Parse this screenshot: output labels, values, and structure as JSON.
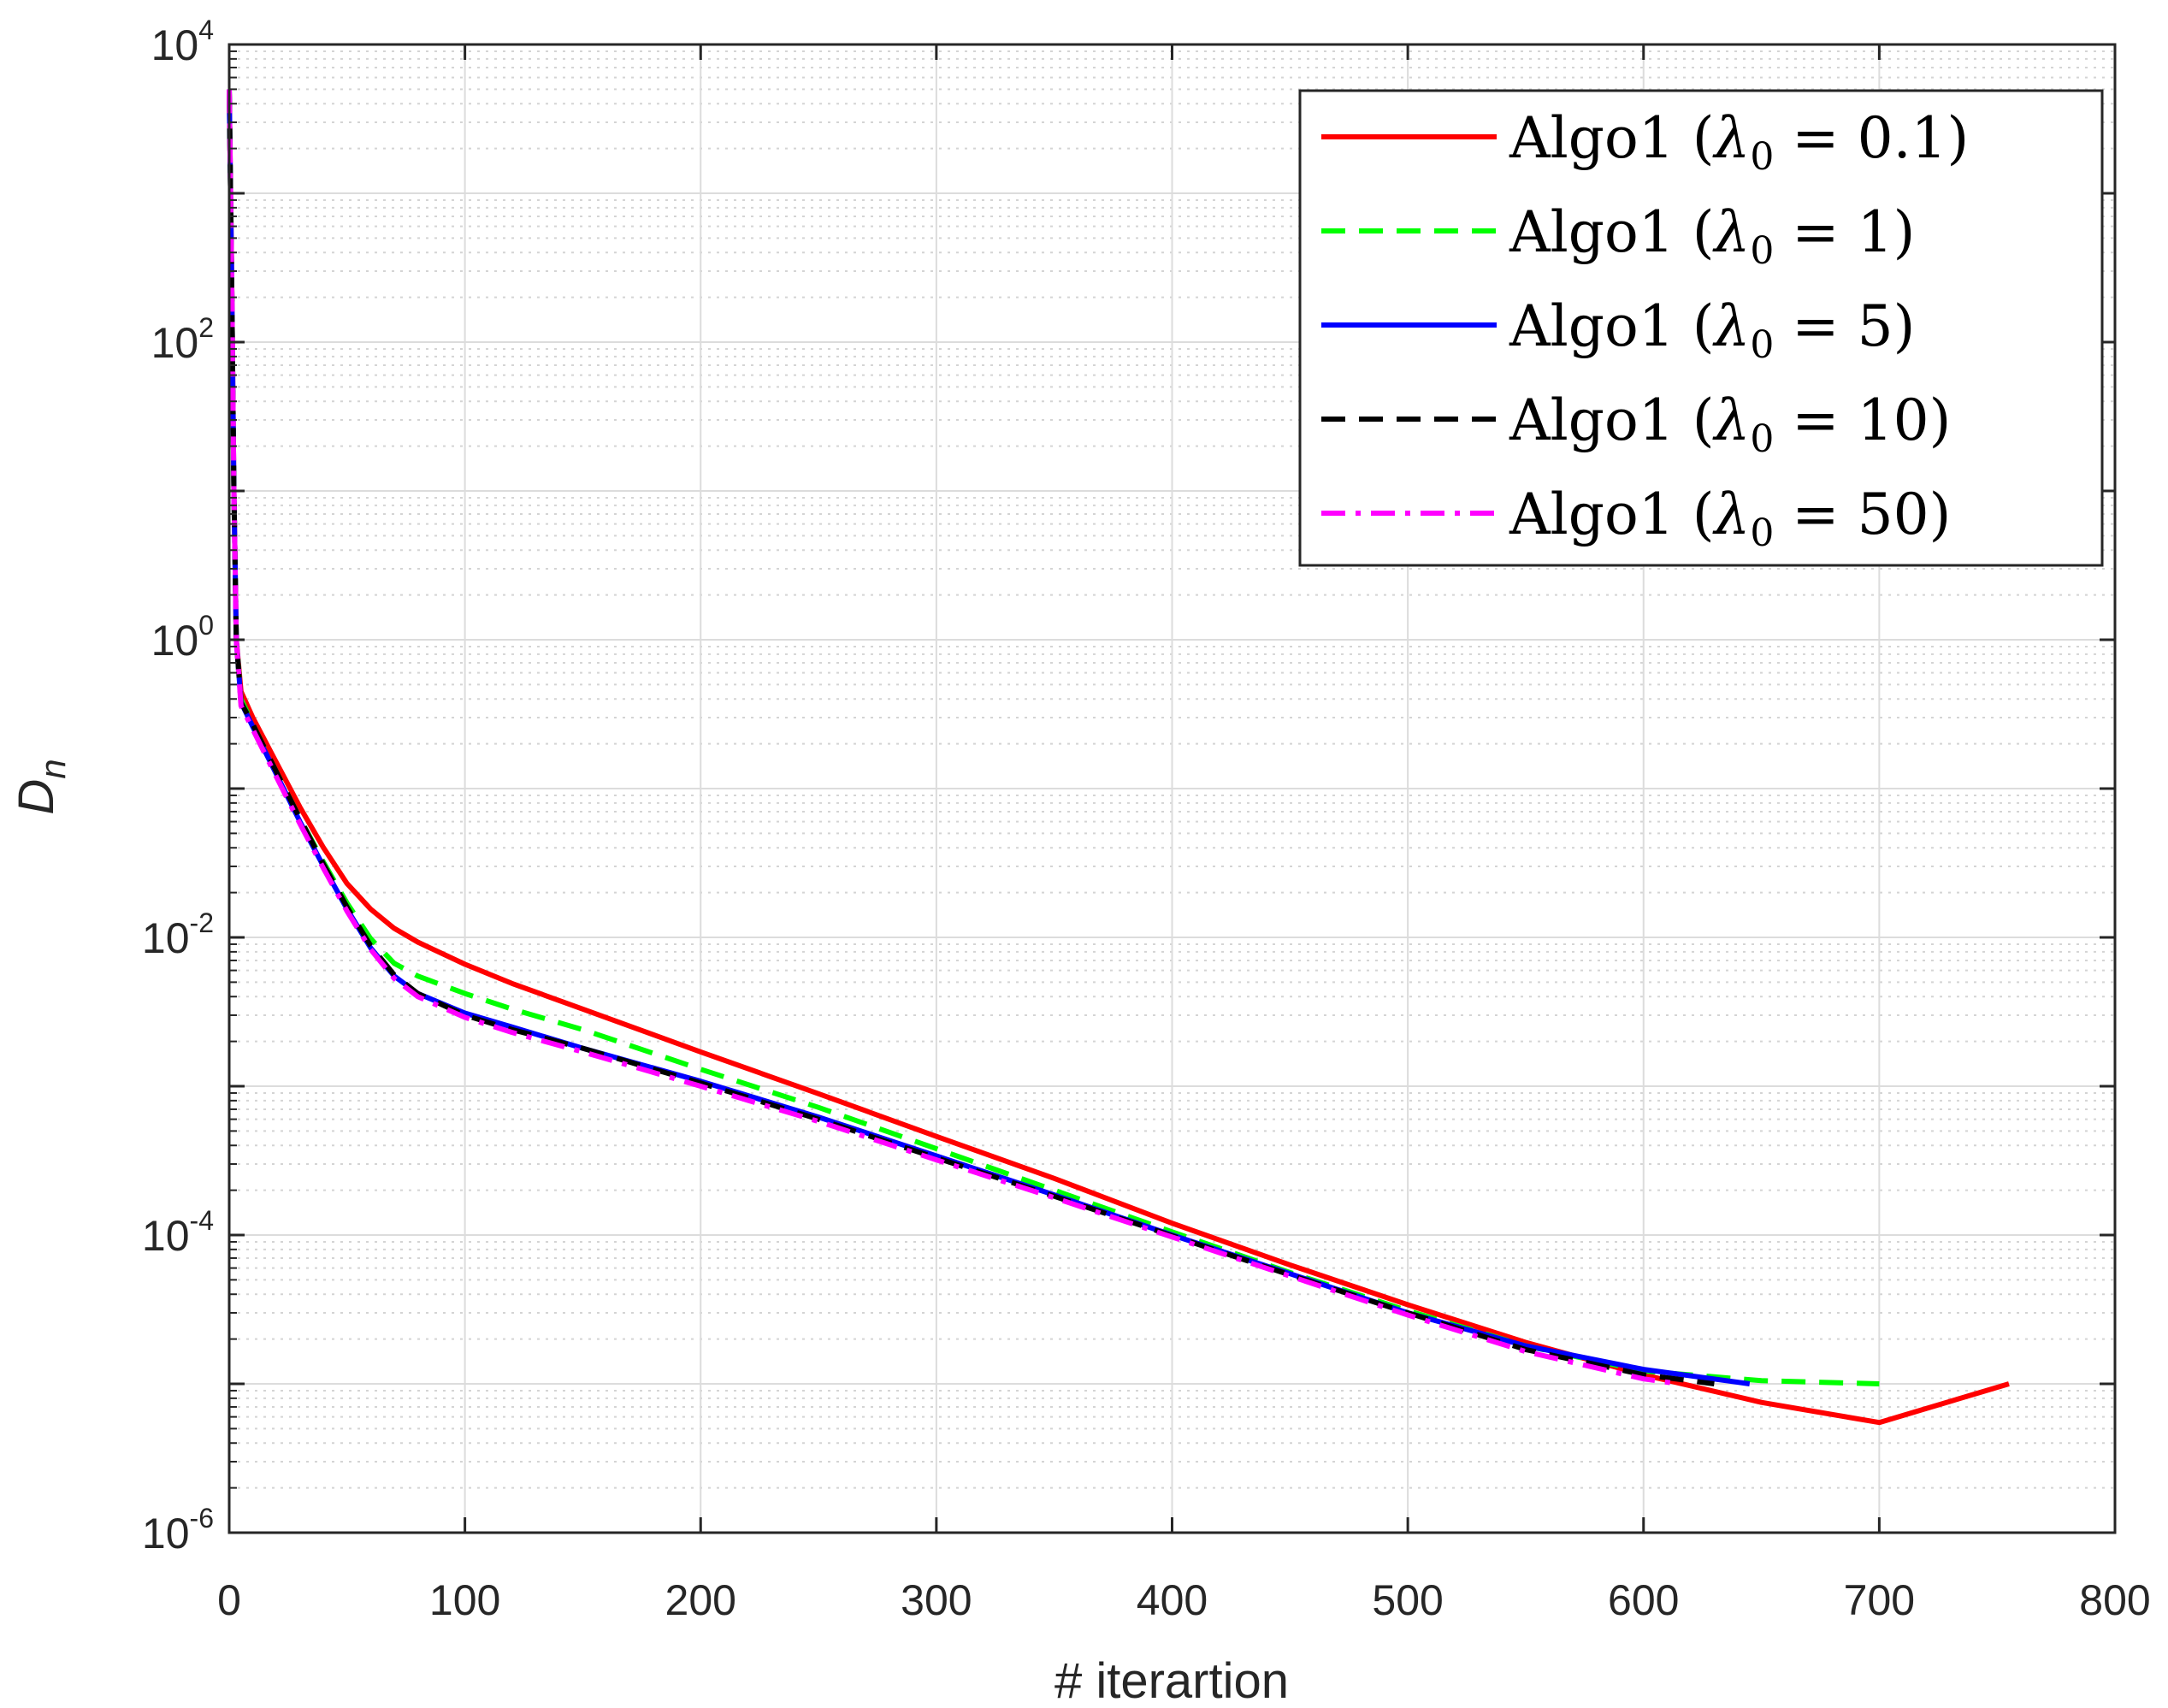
{
  "chart_data": {
    "type": "line",
    "xlabel": "# iterartion",
    "ylabel": "D",
    "ylabel_subscript": "n",
    "xscale": "linear",
    "yscale": "log",
    "xlim": [
      0,
      800
    ],
    "ylim_exponents": [
      -6,
      4
    ],
    "grid": true,
    "minor_grid": true,
    "legend_position": "top-right",
    "x_ticks": [
      "0",
      "100",
      "200",
      "300",
      "400",
      "500",
      "600",
      "700",
      "800"
    ],
    "y_ticks": [
      {
        "base": "10",
        "exp": "-6"
      },
      {
        "base": "10",
        "exp": "-4"
      },
      {
        "base": "10",
        "exp": "-2"
      },
      {
        "base": "10",
        "exp": "0"
      },
      {
        "base": "10",
        "exp": "2"
      },
      {
        "base": "10",
        "exp": "4"
      }
    ],
    "series": [
      {
        "name": "Algo1",
        "lambda_symbol": "λ",
        "lambda_subscript": "0",
        "lambda_value": "0.1",
        "color": "#ff0000",
        "style": "solid",
        "x": [
          0,
          1,
          2,
          3,
          5,
          10,
          20,
          30,
          40,
          50,
          60,
          70,
          80,
          100,
          120,
          150,
          200,
          250,
          300,
          350,
          400,
          450,
          500,
          550,
          600,
          650,
          700,
          755
        ],
        "y": [
          5000,
          300,
          10,
          1,
          0.45,
          0.3,
          0.15,
          0.075,
          0.04,
          0.023,
          0.0155,
          0.0115,
          0.0093,
          0.0066,
          0.0049,
          0.0033,
          0.0017,
          0.00089,
          0.00046,
          0.00024,
          0.00012,
          6.3e-05,
          3.4e-05,
          1.9e-05,
          1.15e-05,
          7.5e-06,
          5.5e-06,
          1e-05
        ]
      },
      {
        "name": "Algo1",
        "lambda_symbol": "λ",
        "lambda_subscript": "0",
        "lambda_value": "1",
        "color": "#00ff00",
        "style": "dashed",
        "x": [
          0,
          1,
          2,
          3,
          5,
          10,
          20,
          30,
          40,
          50,
          60,
          70,
          80,
          100,
          120,
          150,
          200,
          250,
          300,
          350,
          400,
          450,
          500,
          550,
          600,
          650,
          700
        ],
        "y": [
          5000,
          300,
          10,
          1,
          0.4,
          0.27,
          0.13,
          0.063,
          0.032,
          0.017,
          0.0098,
          0.0067,
          0.0055,
          0.0042,
          0.0033,
          0.0024,
          0.0013,
          0.00072,
          0.00038,
          0.0002,
          0.000105,
          5.6e-05,
          3.1e-05,
          1.8e-05,
          1.22e-05,
          1.05e-05,
          1e-05
        ]
      },
      {
        "name": "Algo1",
        "lambda_symbol": "λ",
        "lambda_subscript": "0",
        "lambda_value": "5",
        "color": "#0000ff",
        "style": "solid",
        "x": [
          0,
          1,
          2,
          3,
          5,
          10,
          20,
          30,
          40,
          50,
          60,
          70,
          80,
          100,
          120,
          150,
          200,
          250,
          300,
          350,
          400,
          450,
          500,
          550,
          600,
          645
        ],
        "y": [
          5000,
          300,
          10,
          1,
          0.38,
          0.26,
          0.125,
          0.06,
          0.03,
          0.0155,
          0.0085,
          0.0055,
          0.0042,
          0.0031,
          0.0025,
          0.0018,
          0.00108,
          0.00062,
          0.00034,
          0.000186,
          0.0001,
          5.5e-05,
          3e-05,
          1.8e-05,
          1.25e-05,
          1e-05
        ]
      },
      {
        "name": "Algo1",
        "lambda_symbol": "λ",
        "lambda_subscript": "0",
        "lambda_value": "10",
        "color": "#000000",
        "style": "dashed",
        "x": [
          0,
          1,
          2,
          3,
          5,
          10,
          20,
          30,
          40,
          50,
          60,
          70,
          80,
          100,
          120,
          150,
          200,
          250,
          300,
          350,
          400,
          450,
          500,
          550,
          600,
          630
        ],
        "y": [
          5000,
          300,
          10,
          1,
          0.38,
          0.27,
          0.13,
          0.063,
          0.031,
          0.016,
          0.0088,
          0.0056,
          0.0042,
          0.003,
          0.0024,
          0.0018,
          0.00105,
          0.0006,
          0.00033,
          0.000182,
          9.9e-05,
          5.4e-05,
          3e-05,
          1.7e-05,
          1.15e-05,
          1e-05
        ]
      },
      {
        "name": "Algo1",
        "lambda_symbol": "λ",
        "lambda_subscript": "0",
        "lambda_value": "50",
        "color": "#ff00ff",
        "style": "dashdot",
        "x": [
          0,
          1,
          2,
          3,
          5,
          10,
          20,
          30,
          40,
          50,
          60,
          70,
          80,
          100,
          120,
          150,
          200,
          250,
          300,
          350,
          400,
          450,
          500,
          550,
          600,
          615
        ],
        "y": [
          5000,
          300,
          10,
          1,
          0.36,
          0.25,
          0.12,
          0.058,
          0.029,
          0.015,
          0.0083,
          0.0053,
          0.004,
          0.0029,
          0.0023,
          0.0017,
          0.001,
          0.00058,
          0.00032,
          0.000178,
          9.7e-05,
          5.3e-05,
          2.9e-05,
          1.65e-05,
          1.08e-05,
          1e-05
        ]
      }
    ]
  }
}
